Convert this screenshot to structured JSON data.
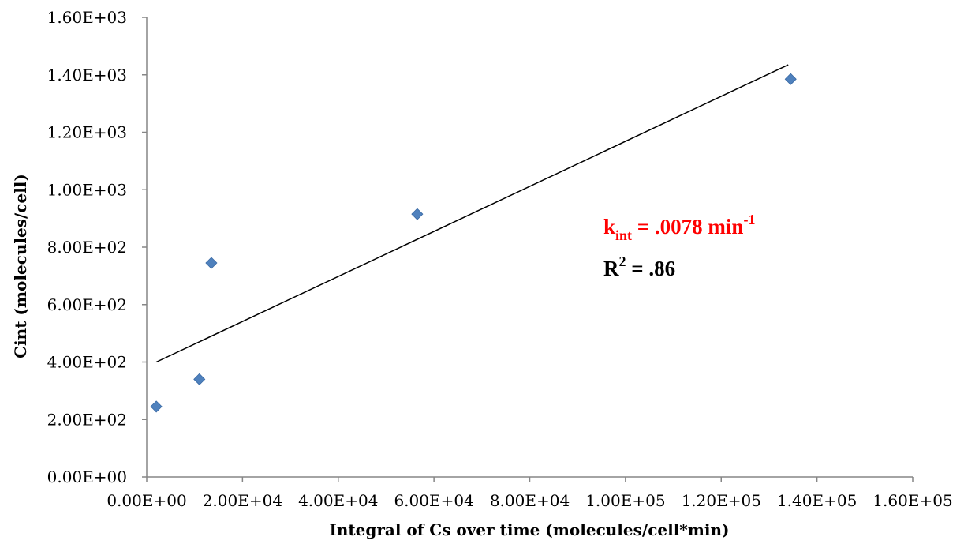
{
  "chart_data": {
    "type": "scatter",
    "title": "",
    "xlabel": "Integral of Cs over time (molecules/cell*min)",
    "ylabel": "Cint (molecules/cell)",
    "xlim": [
      0,
      160000
    ],
    "ylim": [
      0,
      1600
    ],
    "x_ticks": [
      0,
      20000,
      40000,
      60000,
      80000,
      100000,
      120000,
      140000,
      160000
    ],
    "x_tick_labels": [
      "0.00E+00",
      "2.00E+04",
      "4.00E+04",
      "6.00E+04",
      "8.00E+04",
      "1.00E+05",
      "1.20E+05",
      "1.40E+05",
      "1.60E+05"
    ],
    "y_ticks": [
      0,
      200,
      400,
      600,
      800,
      1000,
      1200,
      1400,
      1600
    ],
    "y_tick_labels": [
      "0.00E+00",
      "2.00E+02",
      "4.00E+02",
      "6.00E+02",
      "8.00E+02",
      "1.00E+03",
      "1.20E+03",
      "1.40E+03",
      "1.60E+03"
    ],
    "grid": false,
    "series": [
      {
        "color": "#4F81BD",
        "marker": "diamond",
        "points": [
          {
            "x": 2000,
            "y": 245
          },
          {
            "x": 11000,
            "y": 340
          },
          {
            "x": 13500,
            "y": 745
          },
          {
            "x": 56500,
            "y": 915
          },
          {
            "x": 134500,
            "y": 1385
          }
        ]
      }
    ],
    "trendline": {
      "type": "linear",
      "color": "#000000",
      "x_start": 2000,
      "y_start": 400,
      "x_end": 134000,
      "y_end": 1435
    },
    "annotations": {
      "kint": {
        "main": "k",
        "sub": "int",
        "text": " = .0078 min",
        "sup": "-1",
        "color": "#FF0000"
      },
      "r2": {
        "main": "R",
        "sup": "2",
        "text": " = .86",
        "color": "#000000"
      }
    }
  }
}
